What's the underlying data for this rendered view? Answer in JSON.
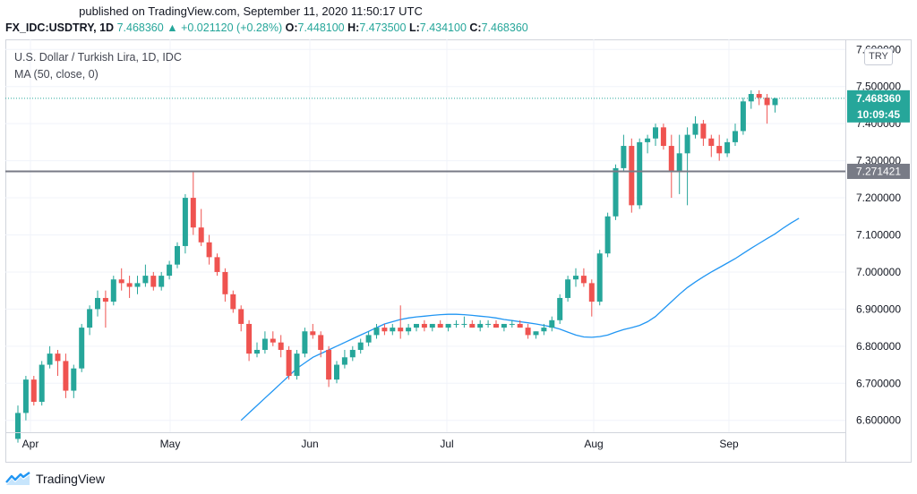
{
  "header": {
    "published": "published on TradingView.com, September 11, 2020 11:50:17 UTC",
    "symbol": "FX_IDC:USDTRY, 1D",
    "last": "7.468360",
    "change": "+0.021120 (+0.28%)",
    "change_arrow": "triangle-up-icon",
    "o_label": "O:",
    "o_value": "7.448100",
    "h_label": "H:",
    "h_value": "7.473500",
    "l_label": "L:",
    "l_value": "7.434100",
    "c_label": "C:",
    "c_value": "7.468360"
  },
  "legend": {
    "title": "U.S. Dollar / Turkish Lira, 1D, IDC",
    "indicator": "MA (50, close, 0)"
  },
  "currency_badge": "TRY",
  "price_label": "7.468360",
  "countdown": "10:09:45",
  "hline_label": "7.271421",
  "footer": {
    "brand": "TradingView"
  },
  "colors": {
    "up": "#26a69a",
    "down": "#ef5350",
    "ma": "#2196f3",
    "hline": "#787b86",
    "grid": "#f0f3fa"
  },
  "chart_data": {
    "type": "candlestick",
    "title": "U.S. Dollar / Turkish Lira, 1D, IDC",
    "ylim": [
      6.58,
      7.62
    ],
    "y_ticks": [
      "7.600000",
      "7.500000",
      "7.400000",
      "7.300000",
      "7.200000",
      "7.100000",
      "7.000000",
      "6.900000",
      "6.800000",
      "6.700000",
      "6.600000"
    ],
    "x_ticks": [
      "Apr",
      "May",
      "Jun",
      "Jul",
      "Aug",
      "Sep"
    ],
    "horizontal_line": 7.271421,
    "last_price": 7.46836,
    "series": [
      {
        "name": "USDTRY",
        "ohlc": [
          [
            6.55,
            6.64,
            6.54,
            6.62
          ],
          [
            6.62,
            6.72,
            6.6,
            6.71
          ],
          [
            6.71,
            6.72,
            6.64,
            6.65
          ],
          [
            6.65,
            6.76,
            6.64,
            6.75
          ],
          [
            6.75,
            6.8,
            6.74,
            6.78
          ],
          [
            6.78,
            6.79,
            6.72,
            6.76
          ],
          [
            6.76,
            6.78,
            6.66,
            6.68
          ],
          [
            6.68,
            6.75,
            6.66,
            6.74
          ],
          [
            6.74,
            6.86,
            6.73,
            6.85
          ],
          [
            6.85,
            6.91,
            6.83,
            6.9
          ],
          [
            6.9,
            6.95,
            6.88,
            6.93
          ],
          [
            6.93,
            6.95,
            6.85,
            6.92
          ],
          [
            6.92,
            6.99,
            6.91,
            6.98
          ],
          [
            6.98,
            7.01,
            6.95,
            6.97
          ],
          [
            6.97,
            6.99,
            6.93,
            6.96
          ],
          [
            6.96,
            6.99,
            6.94,
            6.97
          ],
          [
            6.97,
            7.02,
            6.96,
            6.99
          ],
          [
            6.99,
            7.0,
            6.95,
            6.96
          ],
          [
            6.96,
            7.0,
            6.95,
            6.99
          ],
          [
            6.99,
            7.03,
            6.98,
            7.02
          ],
          [
            7.02,
            7.08,
            7.01,
            7.07
          ],
          [
            7.07,
            7.21,
            7.05,
            7.2
          ],
          [
            7.2,
            7.27,
            7.1,
            7.12
          ],
          [
            7.12,
            7.17,
            7.07,
            7.08
          ],
          [
            7.08,
            7.1,
            7.02,
            7.04
          ],
          [
            7.04,
            7.05,
            6.99,
            7.0
          ],
          [
            7.0,
            7.01,
            6.92,
            6.94
          ],
          [
            6.94,
            6.95,
            6.89,
            6.9
          ],
          [
            6.9,
            6.91,
            6.84,
            6.86
          ],
          [
            6.86,
            6.87,
            6.76,
            6.78
          ],
          [
            6.78,
            6.81,
            6.77,
            6.79
          ],
          [
            6.79,
            6.84,
            6.78,
            6.82
          ],
          [
            6.82,
            6.84,
            6.8,
            6.81
          ],
          [
            6.81,
            6.83,
            6.77,
            6.79
          ],
          [
            6.79,
            6.8,
            6.71,
            6.72
          ],
          [
            6.72,
            6.79,
            6.71,
            6.78
          ],
          [
            6.78,
            6.85,
            6.77,
            6.84
          ],
          [
            6.84,
            6.86,
            6.82,
            6.83
          ],
          [
            6.83,
            6.84,
            6.77,
            6.79
          ],
          [
            6.79,
            6.8,
            6.69,
            6.71
          ],
          [
            6.71,
            6.76,
            6.7,
            6.75
          ],
          [
            6.75,
            6.79,
            6.74,
            6.77
          ],
          [
            6.77,
            6.8,
            6.76,
            6.79
          ],
          [
            6.79,
            6.82,
            6.78,
            6.81
          ],
          [
            6.81,
            6.84,
            6.8,
            6.83
          ],
          [
            6.83,
            6.86,
            6.82,
            6.85
          ],
          [
            6.85,
            6.86,
            6.83,
            6.84
          ],
          [
            6.84,
            6.86,
            6.83,
            6.85
          ],
          [
            6.85,
            6.91,
            6.82,
            6.84
          ],
          [
            6.84,
            6.86,
            6.83,
            6.85
          ],
          [
            6.85,
            6.86,
            6.84,
            6.86
          ],
          [
            6.86,
            6.87,
            6.84,
            6.85
          ],
          [
            6.85,
            6.86,
            6.84,
            6.86
          ],
          [
            6.86,
            6.87,
            6.85,
            6.85
          ],
          [
            6.85,
            6.86,
            6.84,
            6.86
          ],
          [
            6.86,
            6.87,
            6.85,
            6.86
          ],
          [
            6.86,
            6.88,
            6.85,
            6.86
          ],
          [
            6.86,
            6.87,
            6.85,
            6.85
          ],
          [
            6.85,
            6.87,
            6.84,
            6.86
          ],
          [
            6.86,
            6.87,
            6.85,
            6.86
          ],
          [
            6.86,
            6.87,
            6.85,
            6.85
          ],
          [
            6.85,
            6.86,
            6.84,
            6.86
          ],
          [
            6.86,
            6.87,
            6.85,
            6.86
          ],
          [
            6.86,
            6.87,
            6.85,
            6.85
          ],
          [
            6.85,
            6.86,
            6.82,
            6.83
          ],
          [
            6.83,
            6.84,
            6.82,
            6.84
          ],
          [
            6.84,
            6.86,
            6.83,
            6.85
          ],
          [
            6.85,
            6.88,
            6.84,
            6.87
          ],
          [
            6.87,
            6.94,
            6.86,
            6.93
          ],
          [
            6.93,
            6.99,
            6.92,
            6.98
          ],
          [
            6.98,
            7.01,
            6.96,
            6.99
          ],
          [
            6.99,
            7.01,
            6.96,
            6.97
          ],
          [
            6.97,
            6.98,
            6.88,
            6.92
          ],
          [
            6.92,
            7.06,
            6.91,
            7.05
          ],
          [
            7.05,
            7.16,
            7.04,
            7.15
          ],
          [
            7.15,
            7.29,
            7.14,
            7.28
          ],
          [
            7.28,
            7.37,
            7.27,
            7.34
          ],
          [
            7.34,
            7.36,
            7.16,
            7.18
          ],
          [
            7.18,
            7.36,
            7.17,
            7.35
          ],
          [
            7.35,
            7.37,
            7.32,
            7.36
          ],
          [
            7.36,
            7.4,
            7.34,
            7.39
          ],
          [
            7.39,
            7.4,
            7.33,
            7.34
          ],
          [
            7.34,
            7.37,
            7.2,
            7.27
          ],
          [
            7.27,
            7.37,
            7.21,
            7.32
          ],
          [
            7.32,
            7.39,
            7.18,
            7.37
          ],
          [
            7.37,
            7.42,
            7.36,
            7.4
          ],
          [
            7.4,
            7.41,
            7.34,
            7.36
          ],
          [
            7.36,
            7.37,
            7.31,
            7.34
          ],
          [
            7.34,
            7.37,
            7.3,
            7.32
          ],
          [
            7.32,
            7.36,
            7.31,
            7.35
          ],
          [
            7.35,
            7.4,
            7.34,
            7.38
          ],
          [
            7.38,
            7.47,
            7.37,
            7.46
          ],
          [
            7.46,
            7.49,
            7.44,
            7.48
          ],
          [
            7.48,
            7.49,
            7.45,
            7.47
          ],
          [
            7.47,
            7.48,
            7.4,
            7.45
          ],
          [
            7.45,
            7.47,
            7.43,
            7.468
          ]
        ]
      },
      {
        "name": "MA (50, close, 0)",
        "x_start": 28,
        "values": [
          6.6,
          6.62,
          6.64,
          6.66,
          6.68,
          6.7,
          6.72,
          6.74,
          6.755,
          6.77,
          6.78,
          6.79,
          6.8,
          6.81,
          6.82,
          6.83,
          6.84,
          6.85,
          6.86,
          6.866,
          6.872,
          6.876,
          6.879,
          6.881,
          6.883,
          6.885,
          6.886,
          6.886,
          6.885,
          6.883,
          6.881,
          6.879,
          6.876,
          6.872,
          6.869,
          6.866,
          6.863,
          6.86,
          6.856,
          6.852,
          6.846,
          6.838,
          6.83,
          6.825,
          6.824,
          6.826,
          6.83,
          6.838,
          6.845,
          6.85,
          6.856,
          6.866,
          6.88,
          6.9,
          6.92,
          6.94,
          6.958,
          6.973,
          6.987,
          7.0,
          7.012,
          7.024,
          7.036,
          7.05,
          7.064,
          7.077,
          7.09,
          7.103,
          7.118,
          7.132,
          7.145
        ]
      }
    ]
  }
}
